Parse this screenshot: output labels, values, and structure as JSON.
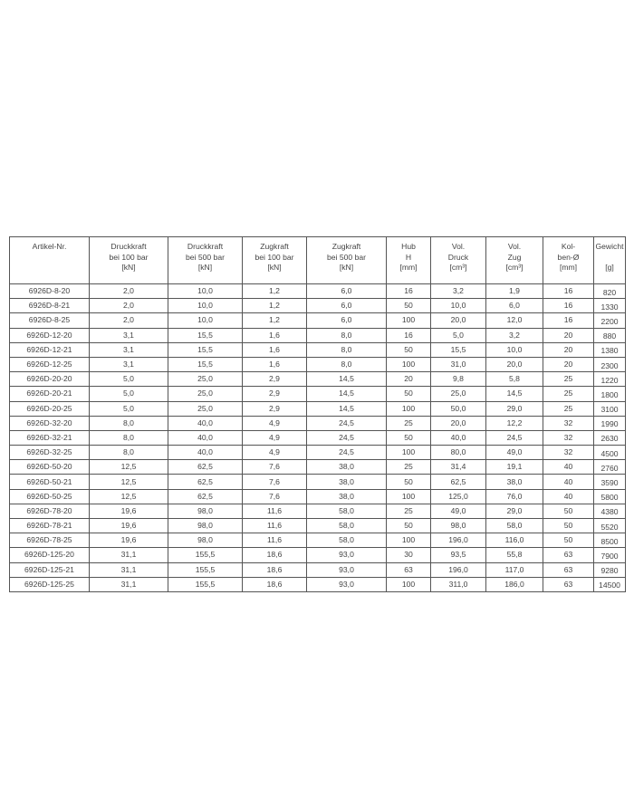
{
  "table": {
    "headers": [
      [
        "Artikel-Nr."
      ],
      [
        "Druckkraft",
        "bei 100 bar",
        "[kN]"
      ],
      [
        "Druckkraft",
        "bei 500 bar",
        "[kN]"
      ],
      [
        "Zugkraft",
        "bei 100 bar",
        "[kN]"
      ],
      [
        "Zugkraft",
        "bei 500 bar",
        "[kN]"
      ],
      [
        "Hub",
        "H",
        "[mm]"
      ],
      [
        "Vol.",
        "Druck",
        "[cm³]"
      ],
      [
        "Vol.",
        "Zug",
        "[cm³]"
      ],
      [
        "Kol-",
        "ben-Ø",
        "[mm]"
      ],
      [
        "Gewicht",
        "",
        "[g]"
      ]
    ],
    "rows": [
      [
        "6926D-8-20",
        "2,0",
        "10,0",
        "1,2",
        "6,0",
        "16",
        "3,2",
        "1,9",
        "16",
        "820"
      ],
      [
        "6926D-8-21",
        "2,0",
        "10,0",
        "1,2",
        "6,0",
        "50",
        "10,0",
        "6,0",
        "16",
        "1330"
      ],
      [
        "6926D-8-25",
        "2,0",
        "10,0",
        "1,2",
        "6,0",
        "100",
        "20,0",
        "12,0",
        "16",
        "2200"
      ],
      [
        "6926D-12-20",
        "3,1",
        "15,5",
        "1,6",
        "8,0",
        "16",
        "5,0",
        "3,2",
        "20",
        "880"
      ],
      [
        "6926D-12-21",
        "3,1",
        "15,5",
        "1,6",
        "8,0",
        "50",
        "15,5",
        "10,0",
        "20",
        "1380"
      ],
      [
        "6926D-12-25",
        "3,1",
        "15,5",
        "1,6",
        "8,0",
        "100",
        "31,0",
        "20,0",
        "20",
        "2300"
      ],
      [
        "6926D-20-20",
        "5,0",
        "25,0",
        "2,9",
        "14,5",
        "20",
        "9,8",
        "5,8",
        "25",
        "1220"
      ],
      [
        "6926D-20-21",
        "5,0",
        "25,0",
        "2,9",
        "14,5",
        "50",
        "25,0",
        "14,5",
        "25",
        "1800"
      ],
      [
        "6926D-20-25",
        "5,0",
        "25,0",
        "2,9",
        "14,5",
        "100",
        "50,0",
        "29,0",
        "25",
        "3100"
      ],
      [
        "6926D-32-20",
        "8,0",
        "40,0",
        "4,9",
        "24,5",
        "25",
        "20,0",
        "12,2",
        "32",
        "1990"
      ],
      [
        "6926D-32-21",
        "8,0",
        "40,0",
        "4,9",
        "24,5",
        "50",
        "40,0",
        "24,5",
        "32",
        "2630"
      ],
      [
        "6926D-32-25",
        "8,0",
        "40,0",
        "4,9",
        "24,5",
        "100",
        "80,0",
        "49,0",
        "32",
        "4500"
      ],
      [
        "6926D-50-20",
        "12,5",
        "62,5",
        "7,6",
        "38,0",
        "25",
        "31,4",
        "19,1",
        "40",
        "2760"
      ],
      [
        "6926D-50-21",
        "12,5",
        "62,5",
        "7,6",
        "38,0",
        "50",
        "62,5",
        "38,0",
        "40",
        "3590"
      ],
      [
        "6926D-50-25",
        "12,5",
        "62,5",
        "7,6",
        "38,0",
        "100",
        "125,0",
        "76,0",
        "40",
        "5800"
      ],
      [
        "6926D-78-20",
        "19,6",
        "98,0",
        "11,6",
        "58,0",
        "25",
        "49,0",
        "29,0",
        "50",
        "4380"
      ],
      [
        "6926D-78-21",
        "19,6",
        "98,0",
        "11,6",
        "58,0",
        "50",
        "98,0",
        "58,0",
        "50",
        "5520"
      ],
      [
        "6926D-78-25",
        "19,6",
        "98,0",
        "11,6",
        "58,0",
        "100",
        "196,0",
        "116,0",
        "50",
        "8500"
      ],
      [
        "6926D-125-20",
        "31,1",
        "155,5",
        "18,6",
        "93,0",
        "30",
        "93,5",
        "55,8",
        "63",
        "7900"
      ],
      [
        "6926D-125-21",
        "31,1",
        "155,5",
        "18,6",
        "93,0",
        "63",
        "196,0",
        "117,0",
        "63",
        "9280"
      ],
      [
        "6926D-125-25",
        "31,1",
        "155,5",
        "18,6",
        "93,0",
        "100",
        "311,0",
        "186,0",
        "63",
        "14500"
      ]
    ]
  }
}
